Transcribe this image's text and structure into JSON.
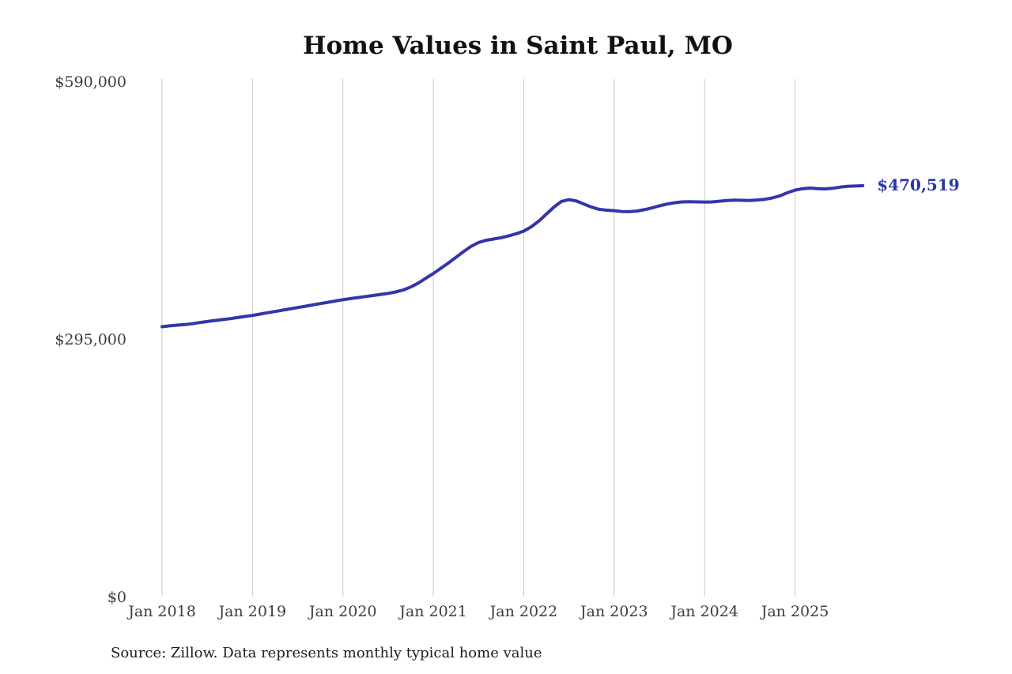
{
  "chart": {
    "title": "Home Values in Saint Paul, MO",
    "source": "Source: Zillow. Data represents monthly typical home value",
    "annotation": "$470,519"
  },
  "chart_data": {
    "type": "line",
    "title": "Home Values in Saint Paul, MO",
    "xlabel": "",
    "ylabel": "",
    "x_start": "Jan 2018",
    "x_interval": "monthly",
    "x_tick_labels": [
      "Jan 2018",
      "Jan 2019",
      "Jan 2020",
      "Jan 2021",
      "Jan 2022",
      "Jan 2023",
      "Jan 2024",
      "Jan 2025"
    ],
    "x_tick_month_indices": [
      0,
      12,
      24,
      36,
      48,
      60,
      72,
      84
    ],
    "y_ticks": [
      0,
      295000,
      590000
    ],
    "y_tick_labels": [
      "$0",
      "$295,000",
      "$590,000"
    ],
    "ylim": [
      0,
      590000
    ],
    "grid": "vertical-only",
    "legend": "none",
    "line_color": "#3434ab",
    "annotation_color": "#2c35a8",
    "gridline_color": "#c9c9c9",
    "latest_value": 470519,
    "latest_value_label": "$470,519",
    "series": [
      {
        "name": "Monthly typical home value",
        "values": [
          309000,
          310000,
          310800,
          311500,
          312500,
          313800,
          315000,
          316200,
          317200,
          318300,
          319500,
          320800,
          322000,
          323500,
          325000,
          326500,
          328000,
          329500,
          331000,
          332500,
          334000,
          335500,
          337000,
          338500,
          340000,
          341200,
          342400,
          343600,
          344800,
          346000,
          347200,
          348800,
          351000,
          354500,
          359000,
          364500,
          370000,
          376000,
          382000,
          388500,
          395000,
          401000,
          405500,
          408000,
          409500,
          411000,
          413000,
          415500,
          418500,
          423500,
          430000,
          438000,
          446000,
          452500,
          454500,
          453000,
          449500,
          446000,
          443500,
          442500,
          442000,
          441000,
          440800,
          441500,
          443000,
          445000,
          447500,
          449500,
          451000,
          452000,
          452300,
          452000,
          451800,
          452000,
          452800,
          453500,
          454000,
          453800,
          453600,
          454200,
          455000,
          456500,
          459000,
          462500,
          465500,
          467000,
          467800,
          467200,
          466800,
          467600,
          468900,
          469800,
          470200,
          470519
        ]
      }
    ]
  }
}
